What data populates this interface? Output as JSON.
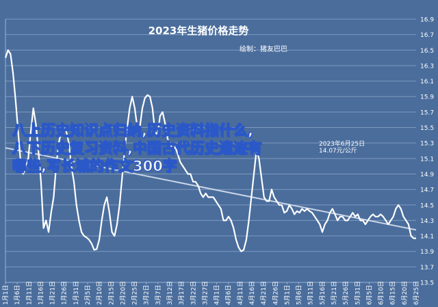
{
  "chart_data": {
    "type": "line",
    "title": "2023年生猪价格走势",
    "subtitle": "绘制：猪友巴巴",
    "annotation": {
      "date": "2023年6月25日",
      "value": "14.07元/公斤"
    },
    "ylim": [
      13.5,
      16.9
    ],
    "yticks": [
      13.5,
      13.7,
      13.9,
      14.1,
      14.3,
      14.5,
      14.7,
      14.9,
      15.1,
      15.3,
      15.5,
      15.7,
      15.9,
      16.1,
      16.3,
      16.5,
      16.7,
      16.9
    ],
    "x_tick_labels": [
      "1月1日",
      "1月6日",
      "1月11日",
      "1月16日",
      "1月21日",
      "1月26日",
      "1月31日",
      "2月5日",
      "2月10日",
      "2月15日",
      "2月20日",
      "2月25日",
      "3月2日",
      "3月7日",
      "3月12日",
      "3月17日",
      "3月22日",
      "3月27日",
      "4月1日",
      "4月6日",
      "4月11日",
      "4月16日",
      "4月21日",
      "4月26日",
      "5月1日",
      "5月6日",
      "5月11日",
      "5月16日",
      "5月21日",
      "5月26日",
      "5月31日",
      "6月5日",
      "6月10日",
      "6月15日",
      "6月20日",
      "6月25日"
    ],
    "grid": true,
    "trendline": true,
    "series": [
      {
        "values": [
          16.4,
          16.5,
          16.45,
          16.2,
          15.85,
          15.45,
          15.05,
          14.9,
          14.98,
          15.1,
          15.45,
          15.75,
          15.55,
          15.2,
          14.8,
          14.2,
          14.3,
          14.15,
          14.4,
          14.6,
          15.0,
          15.3,
          15.45,
          15.5,
          15.45,
          15.3,
          15.0,
          14.8,
          14.5,
          14.3,
          14.15,
          14.1,
          14.08,
          14.05,
          14.0,
          13.92,
          13.93,
          14.05,
          14.3,
          14.5,
          14.6,
          14.4,
          14.15,
          14.1,
          14.25,
          14.5,
          14.85,
          15.2,
          15.5,
          15.75,
          15.9,
          15.75,
          15.5,
          15.5,
          15.75,
          15.88,
          15.92,
          15.9,
          15.75,
          15.45,
          15.4,
          15.65,
          15.7,
          15.55,
          15.35,
          15.3,
          15.2,
          15.25,
          15.15,
          15.05,
          15.0,
          14.95,
          14.9,
          14.9,
          14.8,
          14.8,
          14.75,
          14.65,
          14.6,
          14.65,
          14.6,
          14.6,
          14.6,
          14.55,
          14.5,
          14.45,
          14.3,
          14.3,
          14.35,
          14.3,
          14.2,
          14.05,
          13.95,
          13.9,
          13.92,
          14.05,
          14.3,
          14.6,
          14.9,
          15.2,
          15.1,
          14.85,
          14.6,
          14.55,
          14.55,
          14.7,
          14.6,
          14.55,
          14.5,
          14.5,
          14.4,
          14.42,
          14.5,
          14.45,
          14.38,
          14.42,
          14.4,
          14.45,
          14.42,
          14.45,
          14.42,
          14.4,
          14.35,
          14.3,
          14.25,
          14.15,
          14.25,
          14.3,
          14.4,
          14.45,
          14.38,
          14.3,
          14.35,
          14.35,
          14.3,
          14.3,
          14.35,
          14.4,
          14.35,
          14.38,
          14.3,
          14.3,
          14.25,
          14.3,
          14.35,
          14.38,
          14.35,
          14.35,
          14.38,
          14.35,
          14.3,
          14.25,
          14.3,
          14.35,
          14.45,
          14.5,
          14.45,
          14.35,
          14.3,
          14.25,
          14.1,
          14.07,
          14.07
        ]
      }
    ]
  },
  "overlay_text": {
    "line1": "八上历史知识点归纳,历史资料指什么,",
    "line2": "八下历史复习资料,中国古代历史遗迹有",
    "line3": "哪些,写长城的作文300字"
  }
}
